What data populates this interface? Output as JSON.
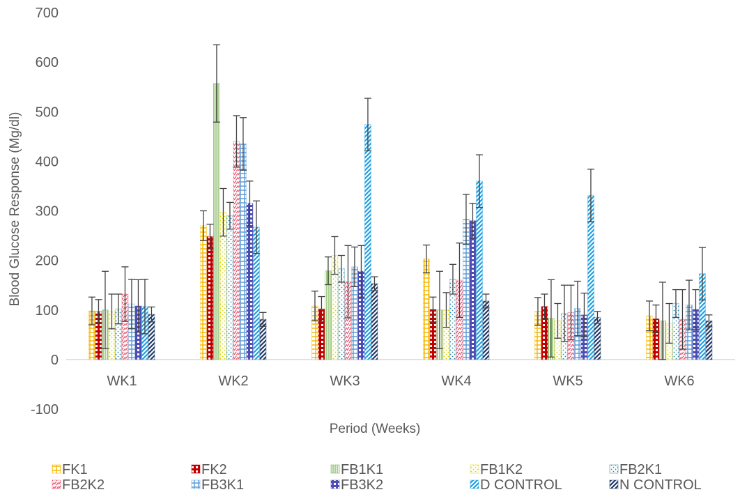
{
  "chart_data": {
    "type": "bar",
    "title": "",
    "xlabel": "Period (Weeks)",
    "ylabel": "Blood Glucose Response (Mg/dl)",
    "ylim": [
      -100,
      700
    ],
    "yticks": [
      -100,
      0,
      100,
      200,
      300,
      400,
      500,
      600,
      700
    ],
    "ytick_labels": [
      "-100",
      "0",
      "100",
      "200",
      "300",
      "400",
      "500",
      "600",
      "700"
    ],
    "grid": false,
    "legend_position": "bottom",
    "error_bars": true,
    "categories": [
      "WK1",
      "WK2",
      "WK3",
      "WK4",
      "WK5",
      "WK6"
    ],
    "series": [
      {
        "name": "FK1",
        "color": "#F5B800",
        "pattern": "grid",
        "values": [
          98,
          270,
          108,
          203,
          97,
          88
        ],
        "errors": [
          28,
          30,
          30,
          28,
          28,
          30
        ]
      },
      {
        "name": "FK2",
        "color": "#C00000",
        "pattern": "bricks",
        "values": [
          97,
          248,
          102,
          101,
          107,
          82
        ],
        "errors": [
          24,
          25,
          25,
          25,
          25,
          28
        ]
      },
      {
        "name": "FB1K1",
        "color": "#70AD47",
        "pattern": "stripes",
        "values": [
          100,
          557,
          179,
          100,
          83,
          78
        ],
        "errors": [
          78,
          78,
          28,
          78,
          78,
          78
        ]
      },
      {
        "name": "FB1K2",
        "color": "#D9D200",
        "pattern": "dots",
        "values": [
          97,
          297,
          210,
          100,
          78,
          73
        ],
        "errors": [
          35,
          48,
          38,
          35,
          35,
          40
        ]
      },
      {
        "name": "FB2K1",
        "color": "#2E86A6",
        "pattern": "dots",
        "values": [
          102,
          290,
          183,
          162,
          93,
          113
        ],
        "errors": [
          30,
          27,
          27,
          30,
          57,
          28
        ]
      },
      {
        "name": "FB2K2",
        "color": "#E8506A",
        "pattern": "dashed",
        "values": [
          132,
          440,
          157,
          160,
          95,
          81
        ],
        "errors": [
          55,
          52,
          73,
          75,
          55,
          60
        ]
      },
      {
        "name": "FB3K1",
        "color": "#5B9BD5",
        "pattern": "grid",
        "values": [
          112,
          435,
          187,
          283,
          103,
          110
        ],
        "errors": [
          50,
          53,
          40,
          50,
          55,
          50
        ]
      },
      {
        "name": "FB3K2",
        "color": "#4D4DB3",
        "pattern": "bricks",
        "values": [
          108,
          315,
          178,
          280,
          90,
          101
        ],
        "errors": [
          53,
          45,
          52,
          35,
          44,
          40
        ]
      },
      {
        "name": "D CONTROL",
        "color": "#1F9FE0",
        "pattern": "wide-stripes",
        "values": [
          107,
          267,
          474,
          360,
          331,
          173
        ],
        "errors": [
          55,
          53,
          53,
          53,
          53,
          53
        ]
      },
      {
        "name": "N CONTROL",
        "color": "#1F3864",
        "pattern": "wide-stripes",
        "values": [
          91,
          81,
          153,
          118,
          85,
          78
        ],
        "errors": [
          15,
          14,
          14,
          14,
          12,
          12
        ]
      }
    ]
  }
}
